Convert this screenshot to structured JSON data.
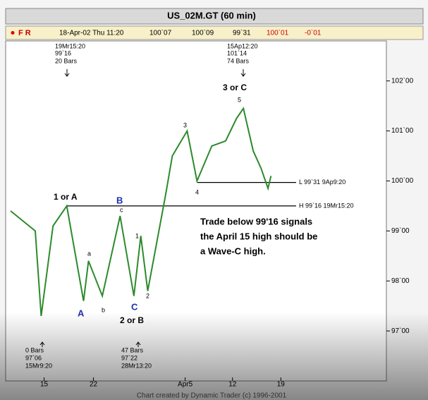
{
  "toolbar": {
    "flags": "F R",
    "date": "18-Apr-02 Thu 11:20",
    "open": "100`07",
    "high": "100`09",
    "low": "99`31",
    "close": "100`01",
    "change": "-0`01"
  },
  "chart_data": {
    "type": "line",
    "title": "US_02M.GT (60 min)",
    "x": [
      0.5,
      3.0,
      3.6,
      4.8,
      6.2,
      7.9,
      8.4,
      9.8,
      11.6,
      13.0,
      13.7,
      14.4,
      16.2,
      16.9,
      18.4,
      19.4,
      20.9,
      22.3,
      23.4,
      24.1,
      25.1,
      25.9,
      26.6,
      26.9
    ],
    "series": [
      {
        "name": "US_02M.GT",
        "color": "#2c8a2c",
        "values": [
          99.4,
          99.0,
          97.3,
          99.1,
          99.5,
          97.6,
          98.4,
          97.7,
          99.3,
          97.7,
          98.9,
          97.8,
          99.7,
          100.5,
          101.0,
          100.0,
          100.7,
          100.8,
          101.25,
          101.45,
          100.6,
          100.25,
          99.85,
          100.1
        ]
      }
    ],
    "xlim": [
      0,
      38.6
    ],
    "xticks": [
      {
        "value": 3.9,
        "label": "15"
      },
      {
        "value": 8.9,
        "label": "22"
      },
      {
        "value": 18.2,
        "label": "Apr5"
      },
      {
        "value": 23.0,
        "label": "12"
      },
      {
        "value": 27.9,
        "label": "19"
      }
    ],
    "ylim": [
      96.0,
      102.8
    ],
    "yticks": [
      {
        "value": 97,
        "label": "97`00"
      },
      {
        "value": 98,
        "label": "98`00"
      },
      {
        "value": 99,
        "label": "99`00"
      },
      {
        "value": 100,
        "label": "100`00"
      },
      {
        "value": 101,
        "label": "101`00"
      },
      {
        "value": 102,
        "label": "102`00"
      }
    ],
    "levels": [
      {
        "label": "H 99`16 19Mr15:20",
        "value": 99.5
      },
      {
        "label": "L 99`31 9Ap9:20",
        "value": 99.97
      }
    ],
    "annotations": [
      "19Mr15:20",
      "99`16",
      "20 Bars",
      "15Ap12:20",
      "101`14",
      "74 Bars",
      "0 Bars",
      "97`06",
      "15Mr9:20",
      "47 Bars",
      "97`22",
      "28Mr13:20",
      "1 or A",
      "B",
      "c",
      "a",
      "A",
      "b",
      "C",
      "2 or B",
      "1",
      "2",
      "3",
      "4",
      "5",
      "3 or C"
    ],
    "note": [
      "Trade below 99'16 signals",
      "the April 15 high should be",
      "a Wave-C high."
    ],
    "footer": "Chart created by Dynamic Trader (c) 1996-2001"
  }
}
